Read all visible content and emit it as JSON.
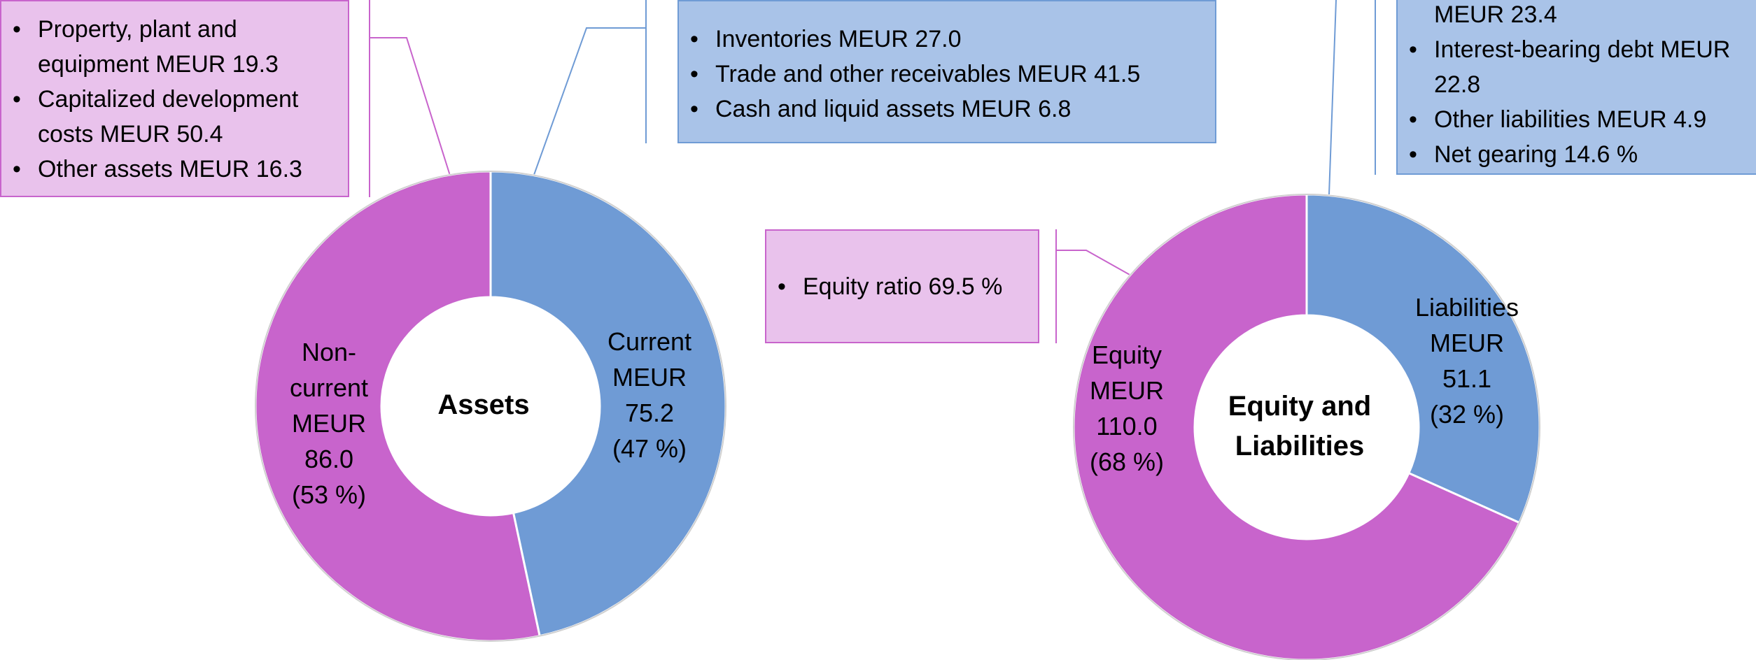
{
  "chart_data": [
    {
      "type": "donut",
      "center_label": "Assets",
      "categories": [
        "Non-current",
        "Current"
      ],
      "values": [
        86.0,
        75.2
      ],
      "value_labels": [
        "MEUR 86.0 (53 %)",
        "MEUR 75.2 (47 %)"
      ],
      "colors": [
        "#C864CC",
        "#6F9BD5"
      ],
      "callouts": [
        {
          "items": [
            "Property, plant and equipment MEUR 19.3",
            "Capitalized development costs MEUR 50.4",
            "Other assets MEUR 16.3"
          ]
        },
        {
          "items": [
            "Inventories MEUR 27.0",
            "Trade and other receivables MEUR 41.5",
            "Cash and liquid assets MEUR 6.8"
          ]
        }
      ]
    },
    {
      "type": "donut",
      "center_label": "Equity and Liabilities",
      "categories": [
        "Equity",
        "Liabilities"
      ],
      "values": [
        110.0,
        51.1
      ],
      "value_labels": [
        "MEUR 110.0 (68 %)",
        "MEUR 51.1 (32 %)"
      ],
      "colors": [
        "#C864CC",
        "#6F9BD5"
      ],
      "callouts": [
        {
          "items": [
            "Equity ratio 69.5 %"
          ]
        },
        {
          "items": [
            "MEUR 23.4",
            "Interest-bearing debt MEUR 22.8",
            "Other liabilities MEUR 4.9",
            "Net gearing 14.6 %"
          ]
        }
      ]
    }
  ]
}
